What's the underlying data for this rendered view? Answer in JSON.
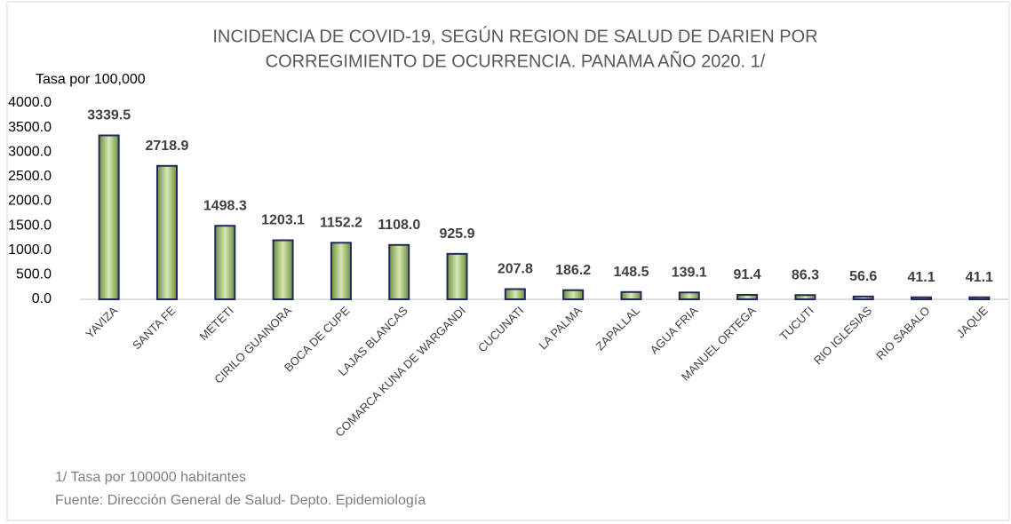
{
  "chart_data": {
    "type": "bar",
    "title": [
      "INCIDENCIA DE COVID-19, SEGÚN REGION DE SALUD DE DARIEN POR",
      "CORREGIMIENTO DE OCURRENCIA. PANAMA AÑO 2020. 1/"
    ],
    "y_label": "Tasa por 100,000",
    "categories": [
      "YAVIZA",
      "SANTA FE",
      "METETI",
      "CIRILO GUAINORA",
      "BOCA DE CUPE",
      "LAJAS BLANCAS",
      "COMARCA KUNA DE WARGANDI",
      "CUCUNATI",
      "LA PALMA",
      "ZAPALLAL",
      "AGUA FRIA",
      "MANUEL ORTEGA",
      "TUCUTI",
      "RIO IGLESIAS",
      "RIO SABALO",
      "JAQUE"
    ],
    "values": [
      3339.5,
      2718.9,
      1498.3,
      1203.1,
      1152.2,
      1108.0,
      925.9,
      207.8,
      186.2,
      148.5,
      139.1,
      91.4,
      86.3,
      56.6,
      41.1,
      41.1
    ],
    "value_labels": [
      "3339.5",
      "2718.9",
      "1498.3",
      "1203.1",
      "1152.2",
      "1108.0",
      "925.9",
      "207.8",
      "186.2",
      "148.5",
      "139.1",
      "91.4",
      "86.3",
      "56.6",
      "41.1",
      "41.1"
    ],
    "color": "#6f8f3f",
    "ylim": [
      0,
      4000
    ],
    "yticks": [
      {
        "value": 0,
        "label": "0.0"
      },
      {
        "value": 500,
        "label": "500.0"
      },
      {
        "value": 1000,
        "label": "1000.0"
      },
      {
        "value": 1500,
        "label": "1500.0"
      },
      {
        "value": 2000,
        "label": "2000.0"
      },
      {
        "value": 2500,
        "label": "2500.0"
      },
      {
        "value": 3000,
        "label": "3000.0"
      },
      {
        "value": 3500,
        "label": "3500.0"
      },
      {
        "value": 4000,
        "label": "4000.0"
      }
    ],
    "grid": false,
    "notes": [
      "1/ Tasa por 100000 habitantes",
      "Fuente: Dirección General de Salud- Depto. Epidemiología"
    ]
  }
}
